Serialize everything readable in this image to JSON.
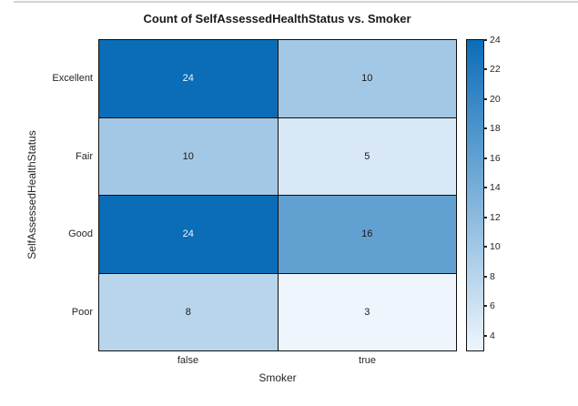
{
  "page": {
    "background": "#ffffff",
    "top_rule_color": "#d3d3d3"
  },
  "chart_data": {
    "type": "heatmap",
    "title": "Count of SelfAssessedHealthStatus vs. Smoker",
    "xlabel": "Smoker",
    "ylabel": "SelfAssessedHealthStatus",
    "columns": [
      "false",
      "true"
    ],
    "rows": [
      "Excellent",
      "Fair",
      "Good",
      "Poor"
    ],
    "values": [
      [
        24,
        10
      ],
      [
        10,
        5
      ],
      [
        24,
        16
      ],
      [
        8,
        3
      ]
    ],
    "color_scale": {
      "min_value": 3,
      "max_value": 24,
      "min_color": "#eef5fc",
      "max_color": "#0b6db8",
      "dark_cell_text_color": "#f2f6fa",
      "light_cell_text_color": "#1a1a1a"
    },
    "colorbar": {
      "position": "right",
      "ticks": [
        4,
        6,
        8,
        10,
        12,
        14,
        16,
        18,
        20,
        22,
        24
      ]
    },
    "grid": "on",
    "gridline_color": "#101010"
  }
}
